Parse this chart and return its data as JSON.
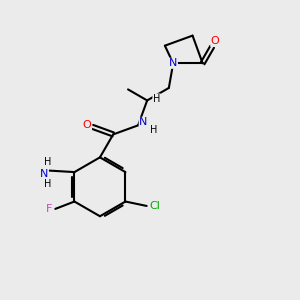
{
  "background_color": "#ebebeb",
  "bond_color": "#000000",
  "atom_colors": {
    "N": "#0000cc",
    "O": "#ff0000",
    "F": "#cc44cc",
    "Cl": "#00aa00",
    "C": "#000000",
    "H": "#000000"
  },
  "figsize": [
    3.0,
    3.0
  ],
  "dpi": 100
}
